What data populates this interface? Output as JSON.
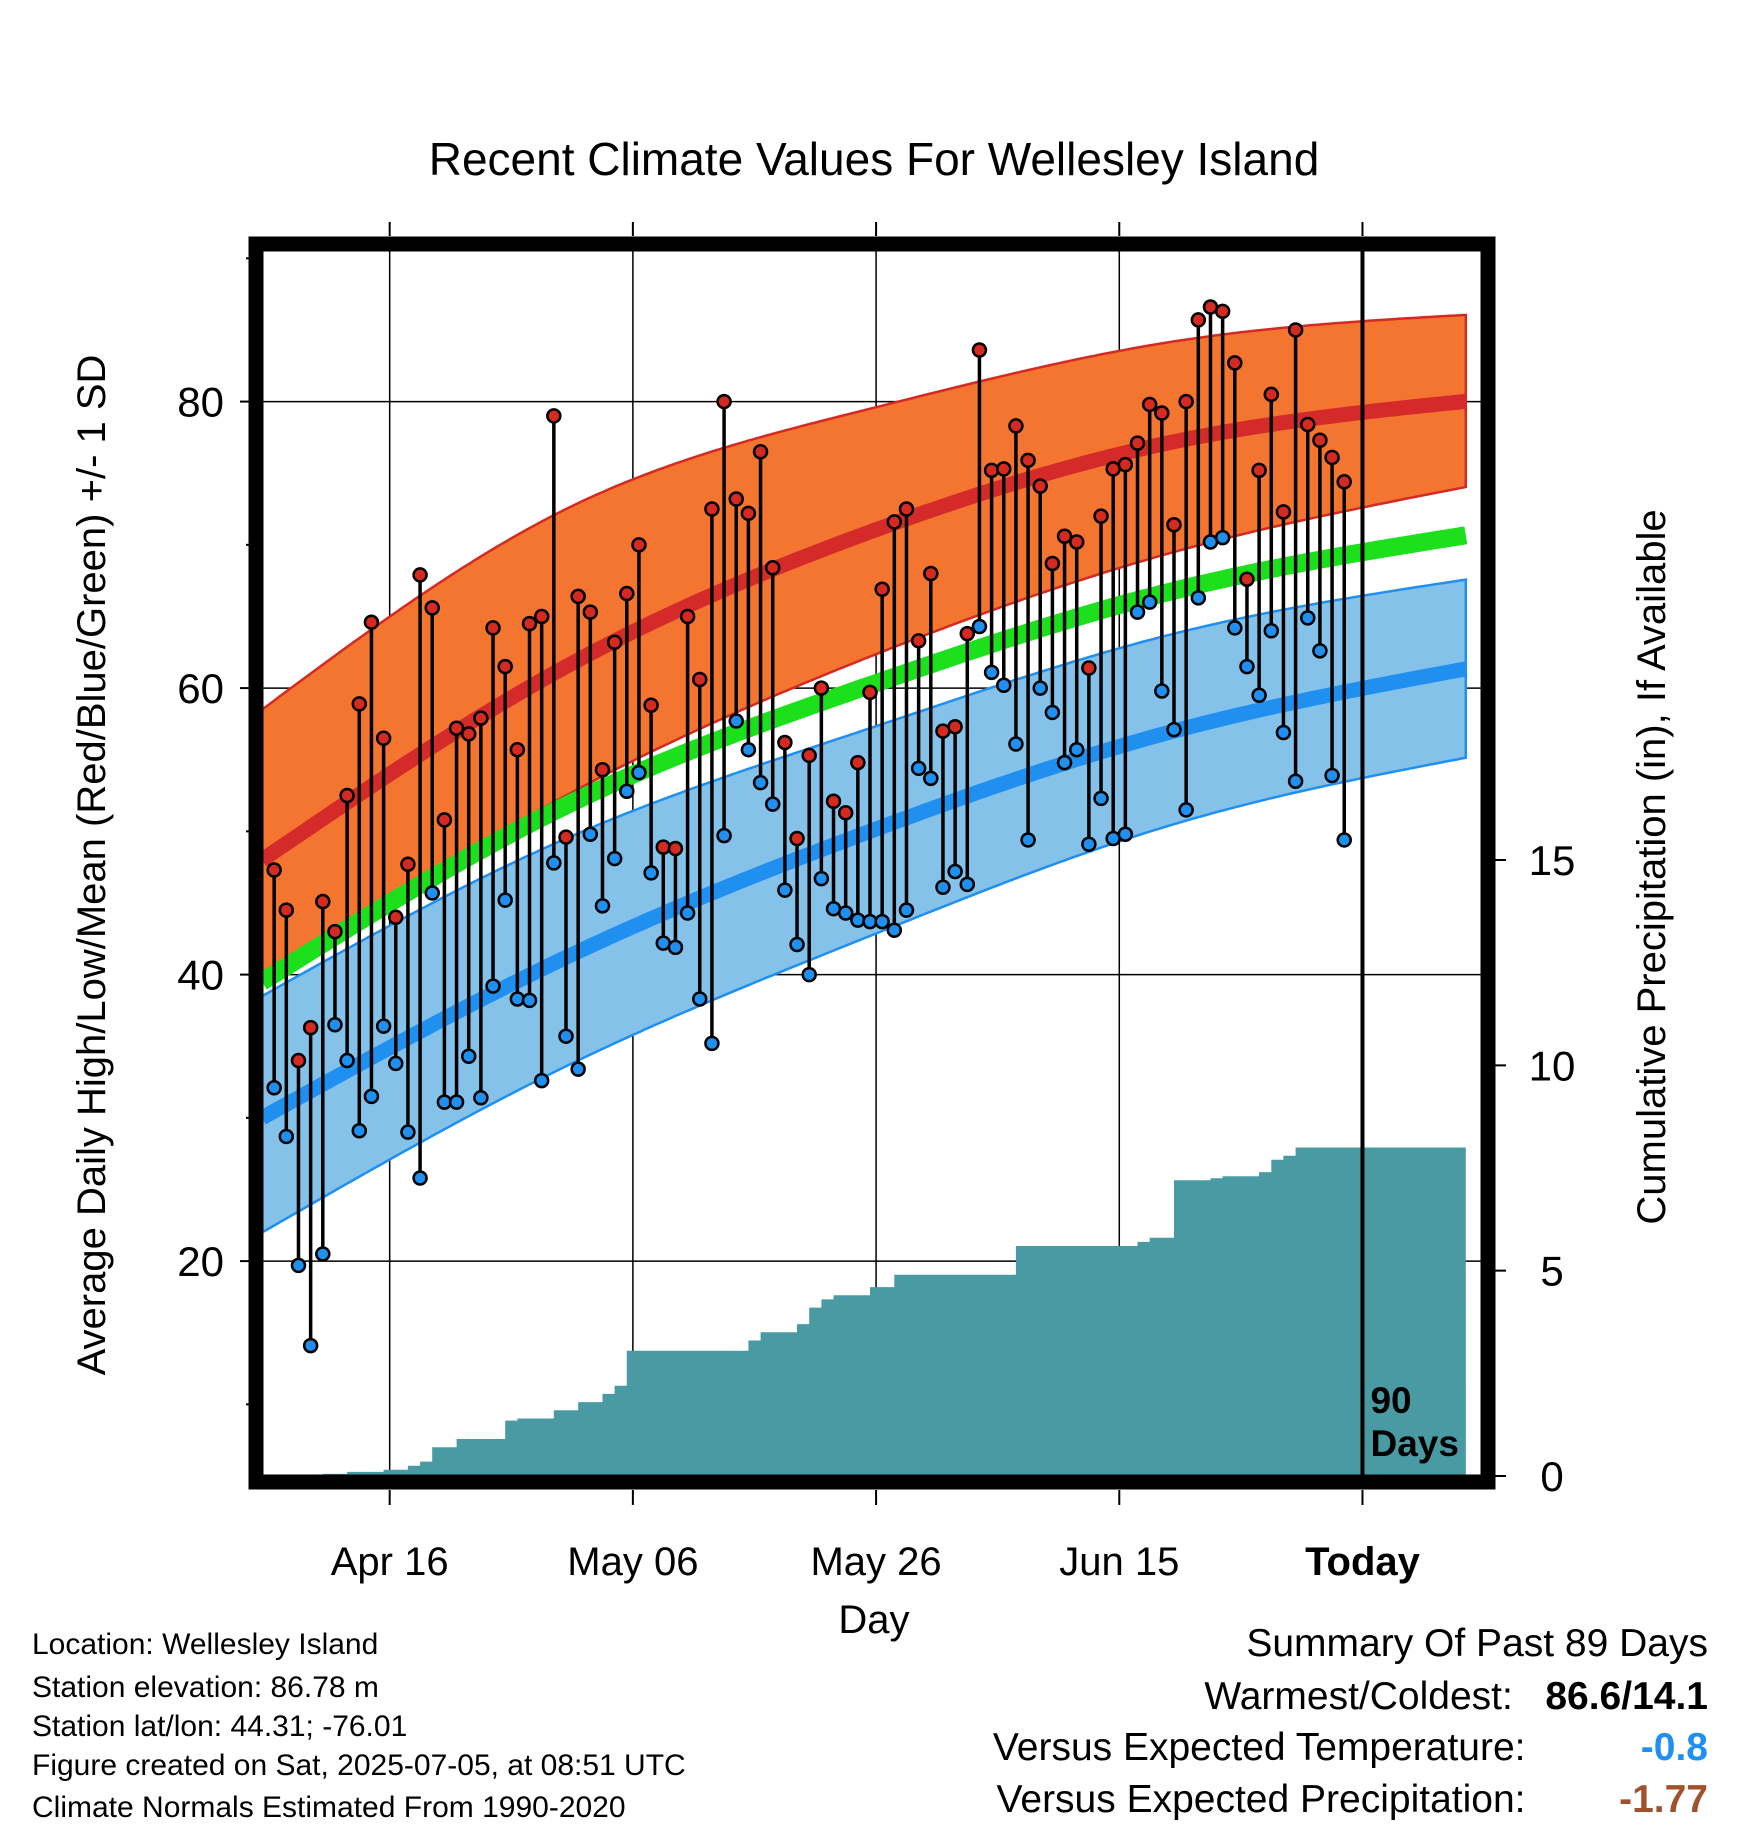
{
  "colors": {
    "high_band": "#f37530",
    "high_band_edge": "#d42a22",
    "high_mean": "#d42a2a",
    "low_band": "#85c2ea",
    "low_band_edge": "#1f8ff0",
    "low_mean": "#1f8ff0",
    "mean": "#1de01d",
    "precip": "#4a9aa3",
    "high_dot": "#d42a22",
    "low_dot": "#1f8ff0",
    "summary_temp": "#1f8ff0",
    "summary_precip": "#a0522d"
  },
  "chart_data": {
    "type": "line",
    "title": "Recent Climate Values For Wellesley Island",
    "xlabel": "Day",
    "ylabel": "Average Daily High/Low/Mean (Red/Blue/Green) +/- 1 SD",
    "y2label": "Cumulative Precipitation (in), If Available",
    "ylim": [
      5,
      91
    ],
    "y2lim": [
      0,
      30
    ],
    "yticks": [
      20,
      40,
      60,
      80
    ],
    "y2ticks": [
      0,
      5,
      10,
      15
    ],
    "xticks": [
      {
        "day": 10.5,
        "label": "Apr 16"
      },
      {
        "day": 30.5,
        "label": "May 06"
      },
      {
        "day": 50.5,
        "label": "May 26"
      },
      {
        "day": 70.5,
        "label": "Jun 15"
      },
      {
        "day": 90.5,
        "label": "Today"
      }
    ],
    "xlim": [
      0,
      100
    ],
    "today_marker": {
      "day": 90.5,
      "label_line1": "90",
      "label_line2": "Days"
    },
    "grid": true,
    "normals": {
      "days": [
        0,
        25,
        50,
        75,
        100
      ],
      "high_mean": [
        48,
        61.5,
        70.9,
        77.2,
        80.1
      ],
      "high_upper": [
        58.5,
        72.5,
        79.5,
        84.2,
        86.1
      ],
      "high_lower": [
        39.5,
        52.5,
        62.2,
        69.5,
        74.2
      ],
      "low_mean": [
        30,
        41.2,
        50,
        57,
        61.5
      ],
      "low_upper": [
        38.5,
        49.5,
        57.2,
        63.8,
        67.7
      ],
      "low_lower": [
        22,
        33.6,
        42.7,
        50.5,
        55.3
      ],
      "mean": [
        39.5,
        51.8,
        60.2,
        66.8,
        70.8
      ]
    },
    "series": [
      {
        "name": "High",
        "x": [
          1,
          2,
          3,
          4,
          5,
          6,
          7,
          8,
          9,
          10,
          11,
          12,
          13,
          14,
          15,
          16,
          17,
          18,
          19,
          20,
          21,
          22,
          23,
          24,
          25,
          26,
          27,
          28,
          29,
          30,
          31,
          32,
          33,
          34,
          35,
          36,
          37,
          38,
          39,
          40,
          41,
          42,
          43,
          44,
          45,
          46,
          47,
          48,
          49,
          50,
          51,
          52,
          53,
          54,
          55,
          56,
          57,
          58,
          59,
          60,
          61,
          62,
          63,
          64,
          65,
          66,
          67,
          68,
          69,
          70,
          71,
          72,
          73,
          74,
          75,
          76,
          77,
          78,
          79,
          80,
          81,
          82,
          83,
          84,
          85,
          86,
          87,
          88,
          89
        ],
        "values": [
          47.3,
          44.5,
          34,
          36.3,
          45.1,
          43,
          52.5,
          58.9,
          64.6,
          56.5,
          44,
          47.7,
          67.9,
          65.6,
          50.8,
          57.2,
          56.8,
          57.9,
          64.2,
          61.5,
          55.7,
          64.5,
          65,
          79,
          49.6,
          66.4,
          65.3,
          54.3,
          63.2,
          66.6,
          70,
          58.8,
          48.9,
          48.8,
          65,
          60.6,
          72.5,
          80,
          73.2,
          72.2,
          76.5,
          68.4,
          56.2,
          49.5,
          55.3,
          60,
          52.1,
          51.3,
          54.8,
          59.7,
          66.9,
          71.6,
          72.5,
          63.3,
          68,
          57,
          57.3,
          63.8,
          83.6,
          75.2,
          75.3,
          78.3,
          75.9,
          74.1,
          68.7,
          70.6,
          70.2,
          61.4,
          72,
          75.3,
          75.6,
          77.1,
          79.8,
          79.2,
          71.4,
          80,
          85.7,
          86.6,
          86.3,
          82.7,
          67.6,
          75.2,
          80.5,
          72.3,
          85,
          78.4,
          77.3,
          76.1,
          74.4
        ]
      },
      {
        "name": "Low",
        "x": [
          1,
          2,
          3,
          4,
          5,
          6,
          7,
          8,
          9,
          10,
          11,
          12,
          13,
          14,
          15,
          16,
          17,
          18,
          19,
          20,
          21,
          22,
          23,
          24,
          25,
          26,
          27,
          28,
          29,
          30,
          31,
          32,
          33,
          34,
          35,
          36,
          37,
          38,
          39,
          40,
          41,
          42,
          43,
          44,
          45,
          46,
          47,
          48,
          49,
          50,
          51,
          52,
          53,
          54,
          55,
          56,
          57,
          58,
          59,
          60,
          61,
          62,
          63,
          64,
          65,
          66,
          67,
          68,
          69,
          70,
          71,
          72,
          73,
          74,
          75,
          76,
          77,
          78,
          79,
          80,
          81,
          82,
          83,
          84,
          85,
          86,
          87,
          88,
          89
        ],
        "values": [
          32.1,
          28.7,
          19.7,
          14.1,
          20.5,
          36.5,
          34,
          29.1,
          31.5,
          36.4,
          33.8,
          29,
          25.8,
          45.7,
          31.1,
          31.1,
          34.3,
          31.4,
          39.2,
          45.2,
          38.3,
          38.2,
          32.6,
          47.8,
          35.7,
          33.4,
          49.8,
          44.8,
          48.1,
          52.8,
          54.1,
          47.1,
          42.2,
          41.9,
          44.3,
          38.3,
          35.2,
          49.7,
          57.7,
          55.7,
          53.4,
          51.9,
          45.9,
          42.1,
          40,
          46.7,
          44.6,
          44.3,
          43.8,
          43.7,
          43.7,
          43.1,
          44.5,
          54.4,
          53.7,
          46.1,
          47.2,
          46.3,
          64.3,
          61.1,
          60.2,
          56.1,
          49.4,
          60,
          58.3,
          54.8,
          55.7,
          49.1,
          52.3,
          49.5,
          49.8,
          65.3,
          66,
          59.8,
          57.1,
          51.5,
          66.3,
          70.2,
          70.5,
          64.2,
          61.5,
          59.5,
          64,
          56.9,
          53.5,
          64.9,
          62.6,
          53.9,
          49.4
        ]
      },
      {
        "name": "Cumulative Precipitation",
        "x": [
          0,
          4,
          5,
          6,
          7,
          8,
          9,
          10,
          11,
          12,
          13,
          14,
          15,
          16,
          17,
          18,
          19,
          20,
          21,
          22,
          23,
          24,
          25,
          26,
          27,
          28,
          29,
          30,
          31,
          32,
          33,
          34,
          35,
          36,
          37,
          38,
          39,
          40,
          41,
          42,
          43,
          44,
          45,
          46,
          47,
          48,
          49,
          50,
          51,
          52,
          53,
          54,
          55,
          56,
          57,
          58,
          59,
          60,
          61,
          62,
          63,
          64,
          65,
          66,
          67,
          68,
          69,
          70,
          71,
          72,
          73,
          74,
          75,
          76,
          77,
          78,
          79,
          80,
          81,
          82,
          83,
          84,
          85,
          86,
          87,
          88,
          89,
          90,
          99
        ],
        "values": [
          0,
          0,
          0.05,
          0.05,
          0.1,
          0.1,
          0.1,
          0.15,
          0.15,
          0.25,
          0.35,
          0.7,
          0.7,
          0.9,
          0.9,
          0.9,
          0.9,
          1.35,
          1.4,
          1.4,
          1.4,
          1.6,
          1.6,
          1.8,
          1.8,
          2,
          2.2,
          3.05,
          3.05,
          3.05,
          3.05,
          3.05,
          3.05,
          3.05,
          3.05,
          3.05,
          3.05,
          3.3,
          3.5,
          3.5,
          3.5,
          3.7,
          4.1,
          4.3,
          4.4,
          4.4,
          4.4,
          4.6,
          4.6,
          4.9,
          4.9,
          4.9,
          4.9,
          4.9,
          4.9,
          4.9,
          4.9,
          4.9,
          4.9,
          5.6,
          5.6,
          5.6,
          5.6,
          5.6,
          5.6,
          5.6,
          5.6,
          5.6,
          5.6,
          5.7,
          5.8,
          5.8,
          7.2,
          7.2,
          7.2,
          7.25,
          7.3,
          7.3,
          7.3,
          7.4,
          7.7,
          7.8,
          8,
          8,
          8,
          8,
          8,
          8,
          8
        ]
      }
    ]
  },
  "info": {
    "location": "Location: Wellesley Island",
    "elevation": "Station elevation: 86.78 m",
    "latlon": "Station lat/lon: 44.31; -76.01",
    "created": "Figure created on Sat, 2025-07-05, at 08:51 UTC",
    "normals": "Climate Normals Estimated From 1990-2020"
  },
  "summary": {
    "heading": "Summary Of Past 89 Days",
    "warm_cold_label": "Warmest/Coldest:",
    "warm_cold_value": "86.6/14.1",
    "temp_label": "Versus Expected Temperature:",
    "temp_value": "-0.8",
    "precip_label": "Versus Expected Precipitation:",
    "precip_value": "-1.77"
  }
}
